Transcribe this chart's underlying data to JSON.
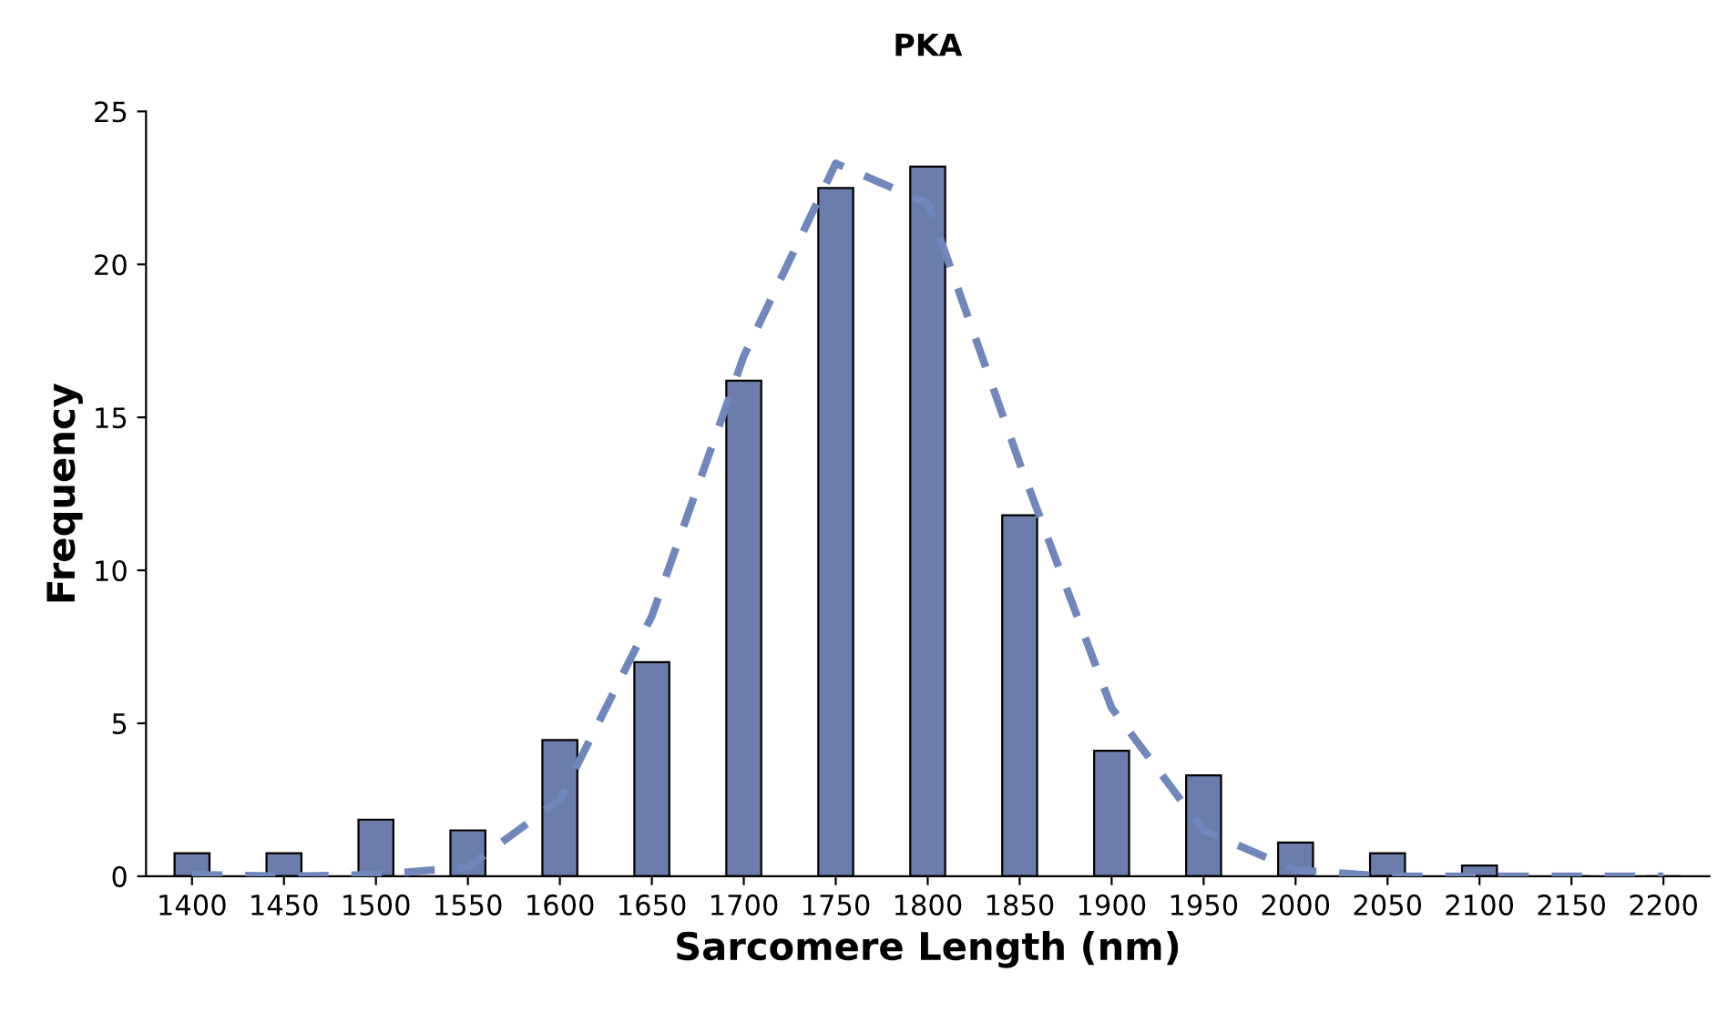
{
  "chart_data": {
    "type": "bar",
    "title": "PKA",
    "xlabel": "Sarcomere Length (nm)",
    "ylabel": "Frequency",
    "categories": [
      "1400",
      "1450",
      "1500",
      "1550",
      "1600",
      "1650",
      "1700",
      "1750",
      "1800",
      "1850",
      "1900",
      "1950",
      "2000",
      "2050",
      "2100",
      "2150",
      "2200"
    ],
    "series": [
      {
        "color": "#6a7dab",
        "values": [
          0.75,
          0.75,
          1.85,
          1.5,
          4.45,
          7.0,
          16.2,
          22.5,
          23.2,
          11.8,
          4.1,
          3.3,
          1.1,
          0.75,
          0.35,
          0,
          0
        ]
      },
      {
        "type": "line",
        "color": "#6f87bb",
        "line_style": "dashed",
        "values": [
          0.05,
          0,
          0.05,
          0.3,
          2.5,
          8.5,
          17,
          23.3,
          22,
          13.5,
          5.5,
          1.5,
          0.2,
          0,
          0,
          0,
          0
        ]
      }
    ],
    "ylim": [
      0,
      25
    ],
    "yticks": [
      0,
      5,
      10,
      15,
      20,
      25
    ],
    "grid": false,
    "legend": false
  }
}
